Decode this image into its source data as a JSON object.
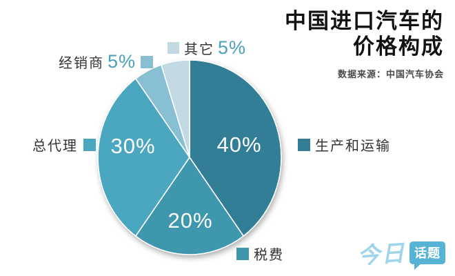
{
  "title": {
    "line1": "中国进口汽车的",
    "line2": "价格构成",
    "source": "数据来源：中国汽车协会"
  },
  "chart_data": {
    "type": "pie",
    "title": "中国进口汽车的价格构成",
    "source": "数据来源：中国汽车协会",
    "start_angle_deg": 0,
    "direction": "clockwise",
    "legend_position": "around",
    "slices": [
      {
        "key": "production-transport",
        "label": "生产和运输",
        "value_pct": 40,
        "pct_label": "40%",
        "color": "#337e97",
        "pct_label_placement": "inside"
      },
      {
        "key": "taxes",
        "label": "税费",
        "value_pct": 20,
        "pct_label": "20%",
        "color": "#3f97ae",
        "pct_label_placement": "inside"
      },
      {
        "key": "general-agent",
        "label": "总代理",
        "value_pct": 30,
        "pct_label": "30%",
        "color": "#4ba6c0",
        "pct_label_placement": "inside"
      },
      {
        "key": "dealer",
        "label": "经销商",
        "value_pct": 5,
        "pct_label": "5%",
        "color": "#89bfd3",
        "pct_label_placement": "outside"
      },
      {
        "key": "other",
        "label": "其它",
        "value_pct": 5,
        "pct_label": "5%",
        "color": "#c3d9e4",
        "pct_label_placement": "outside"
      }
    ]
  },
  "colors": {
    "pct_text_accent": "#4aa0bb",
    "inside_pct_text": "#ffffff",
    "title_text": "#111111",
    "label_text": "#333333",
    "logo_script": "#a0d4ea",
    "logo_badge_bg": "#57b3d4",
    "logo_badge_text": "#ffffff"
  },
  "logo": {
    "script_text": "今日",
    "badge_text": "话题"
  }
}
